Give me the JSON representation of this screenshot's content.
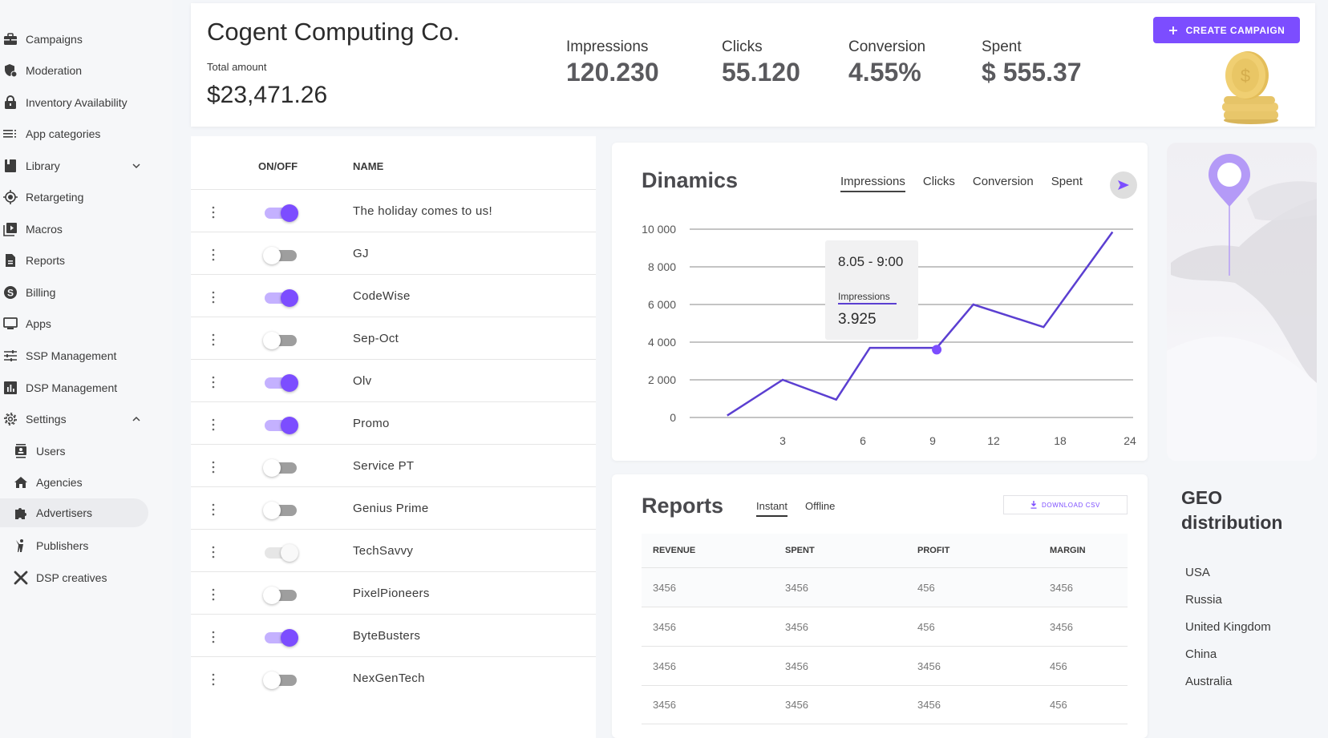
{
  "sidebar": {
    "items": [
      {
        "label": "Campaigns",
        "icon": "briefcase-icon"
      },
      {
        "label": "Moderation",
        "icon": "shield-icon"
      },
      {
        "label": "Inventory Availability",
        "icon": "lock-icon"
      },
      {
        "label": "App categories",
        "icon": "list-icon"
      },
      {
        "label": "Library",
        "icon": "book-icon",
        "expand": "chevron-down"
      },
      {
        "label": "Retargeting",
        "icon": "target-icon"
      },
      {
        "label": "Macros",
        "icon": "video-library-icon"
      },
      {
        "label": "Reports",
        "icon": "document-icon"
      },
      {
        "label": "Billing",
        "icon": "dollar-circle-icon"
      },
      {
        "label": "Apps",
        "icon": "monitor-icon"
      },
      {
        "label": "SSP Management",
        "icon": "sliders-icon"
      },
      {
        "label": "DSP Management",
        "icon": "bar-chart-icon"
      },
      {
        "label": "Settings",
        "icon": "gear-icon",
        "expand": "chevron-up"
      },
      {
        "label": "Users",
        "icon": "contact-icon",
        "sub": true
      },
      {
        "label": "Agencies",
        "icon": "home-icon",
        "sub": true
      },
      {
        "label": "Advertisers",
        "icon": "puzzle-icon",
        "sub": true,
        "active": true
      },
      {
        "label": "Publishers",
        "icon": "person-icon",
        "sub": true
      },
      {
        "label": "DSP creatives",
        "icon": "tools-icon",
        "sub": true
      }
    ]
  },
  "header": {
    "company": "Cogent Computing Co.",
    "total_label": "Total amount",
    "total_value": "$23,471.26",
    "stats": [
      {
        "label": "Impressions",
        "value": "120.230"
      },
      {
        "label": "Clicks",
        "value": "55.120"
      },
      {
        "label": "Conversion",
        "value": "4.55%"
      },
      {
        "label": "Spent",
        "value": "$ 555.37"
      }
    ],
    "create_button": "CREATE CAMPAIGN"
  },
  "campaigns": {
    "headers": {
      "onoff": "ON/OFF",
      "name": "NAME"
    },
    "rows": [
      {
        "name": "The holiday comes to us!",
        "state": "on"
      },
      {
        "name": "GJ",
        "state": "off"
      },
      {
        "name": "CodeWise",
        "state": "on"
      },
      {
        "name": "Sep-Oct",
        "state": "off"
      },
      {
        "name": "Olv",
        "state": "on"
      },
      {
        "name": "Promo",
        "state": "on"
      },
      {
        "name": "Service PT",
        "state": "off"
      },
      {
        "name": "Genius Prime",
        "state": "off"
      },
      {
        "name": "TechSavvy",
        "state": "disabled"
      },
      {
        "name": "PixelPioneers",
        "state": "off"
      },
      {
        "name": "ByteBusters",
        "state": "on"
      },
      {
        "name": "NexGenTech",
        "state": "off"
      }
    ]
  },
  "dinamics": {
    "title": "Dinamics",
    "tabs": [
      "Impressions",
      "Clicks",
      "Conversion",
      "Spent"
    ],
    "active_tab": "Impressions",
    "tooltip": {
      "time": "8.05 - 9:00",
      "series": "Impressions",
      "value": "3.925"
    }
  },
  "chart_data": {
    "type": "line",
    "title": "Dinamics",
    "series": [
      {
        "name": "Impressions",
        "color": "#5b3fd1",
        "points": [
          [
            1,
            100
          ],
          [
            3,
            2000
          ],
          [
            5,
            950
          ],
          [
            6.3,
            3700
          ],
          [
            9.2,
            3700
          ],
          [
            11,
            6000
          ],
          [
            16.5,
            4800
          ],
          [
            22.5,
            9850
          ]
        ]
      }
    ],
    "highlight": {
      "x": 9.2,
      "y": 3600,
      "color": "#7c4dff"
    },
    "x_ticks": [
      {
        "pos": 3,
        "label": "3"
      },
      {
        "pos": 6,
        "label": "6"
      },
      {
        "pos": 9,
        "label": "9"
      },
      {
        "pos": 12,
        "label": "12"
      },
      {
        "pos": 18,
        "label": "18"
      },
      {
        "pos": 24,
        "label": "24"
      }
    ],
    "y_ticks": [
      "0",
      "2 000",
      "4 000",
      "6 000",
      "8 000",
      "10 000"
    ],
    "y_values": [
      0,
      2000,
      4000,
      6000,
      8000,
      10000
    ],
    "ylim": [
      0,
      10000
    ],
    "grid": true
  },
  "reports": {
    "title": "Reports",
    "tabs": [
      "Instant",
      "Offline"
    ],
    "active_tab": "Instant",
    "download_label": "DOWNLOAD CSV",
    "columns": [
      "REVENUE",
      "SPENT",
      "PROFIT",
      "MARGIN"
    ],
    "rows": [
      [
        "3456",
        "3456",
        "456",
        "3456"
      ],
      [
        "3456",
        "3456",
        "456",
        "3456"
      ],
      [
        "3456",
        "3456",
        "3456",
        "456"
      ],
      [
        "3456",
        "3456",
        "3456",
        "456"
      ]
    ]
  },
  "geo": {
    "title_line1": "GEO",
    "title_line2": "distribution",
    "countries": [
      "USA",
      "Russia",
      "United Kingdom",
      "China",
      "Australia"
    ]
  },
  "colors": {
    "accent": "#7c4dff",
    "line": "#5b3fd1"
  }
}
